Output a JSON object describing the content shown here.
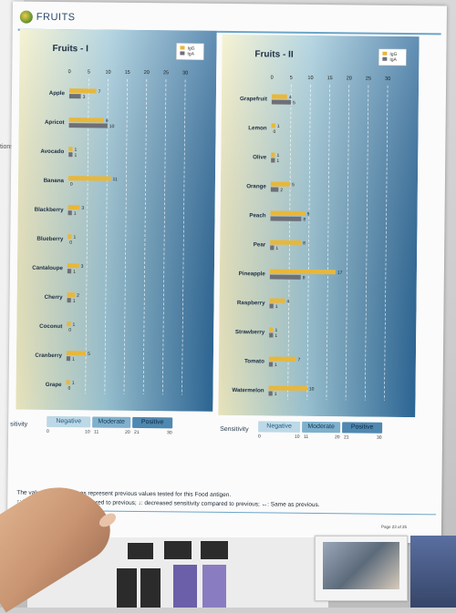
{
  "page": {
    "title": "FRUITS",
    "side_tab": "tions"
  },
  "chart_data": [
    {
      "type": "bar",
      "orientation": "horizontal",
      "title": "Fruits - I",
      "categories": [
        "Apple",
        "Apricot",
        "Avocado",
        "Banana",
        "Blackberry",
        "Blueberry",
        "Cantaloupe",
        "Cherry",
        "Coconut",
        "Cranberry",
        "Grape"
      ],
      "xticks": [
        0,
        5,
        10,
        15,
        20,
        25,
        30
      ],
      "xlim": [
        0,
        30
      ],
      "grid": "vertical dashed",
      "legend": "top-right",
      "series": [
        {
          "name": "IgG",
          "color": "#e8b73a",
          "values": [
            7,
            9,
            1,
            11,
            3,
            1,
            3,
            2,
            1,
            5,
            1
          ]
        },
        {
          "name": "IgA",
          "color": "#6e6f78",
          "values": [
            3,
            10,
            1,
            0,
            1,
            0,
            1,
            1,
            0,
            1,
            0
          ]
        }
      ]
    },
    {
      "type": "bar",
      "orientation": "horizontal",
      "title": "Fruits - II",
      "categories": [
        "Grapefruit",
        "Lemon",
        "Olive",
        "Orange",
        "Peach",
        "Pear",
        "Pineapple",
        "Raspberry",
        "Strawberry",
        "Tomato",
        "Watermelon"
      ],
      "xticks": [
        0,
        5,
        10,
        15,
        20,
        25,
        30
      ],
      "xlim": [
        0,
        30
      ],
      "grid": "vertical dashed",
      "legend": "top-right",
      "series": [
        {
          "name": "IgG",
          "color": "#e8b73a",
          "values": [
            4,
            1,
            1,
            5,
            9,
            8,
            17,
            4,
            1,
            7,
            10
          ]
        },
        {
          "name": "IgA",
          "color": "#6e6f78",
          "values": [
            5,
            0,
            1,
            2,
            8,
            1,
            8,
            1,
            1,
            1,
            1
          ]
        }
      ]
    }
  ],
  "sensitivity": {
    "label": "Sensitivity",
    "label_truncated": "sitivity",
    "negative": "Negative",
    "moderate": "Moderate",
    "positive": "Positive",
    "ticks": [
      "0",
      "10",
      "11",
      "20",
      "21",
      "30"
    ]
  },
  "footnotes": {
    "line1": "The values in parentheses represent previous values tested for this Food antigen.",
    "line2": "↑: Increased sensitivity compared to previous; ↓: decreased sensitivity compared to previous; ↔: Same as previous.",
    "page_label": "Page 23 of 25",
    "left_label": "Page"
  },
  "colors": {
    "accent": "#6aa5c9",
    "igg": "#e8b73a",
    "iga": "#6e6f78",
    "panel_light": "#f3efc5",
    "panel_dark": "#2e6a9b"
  }
}
